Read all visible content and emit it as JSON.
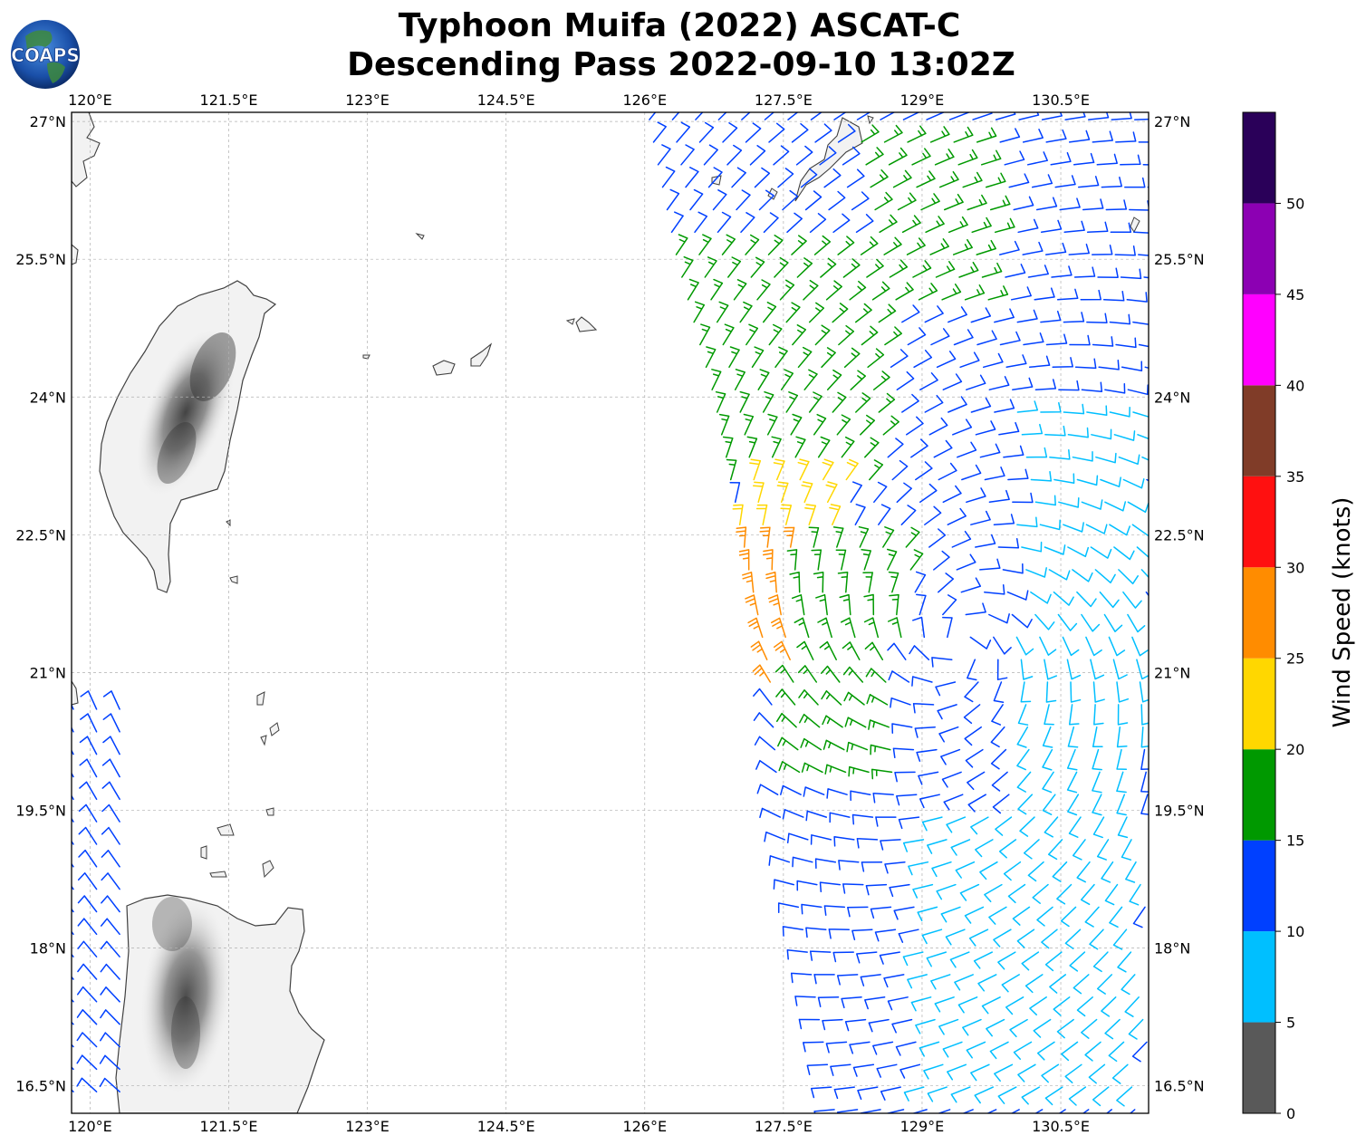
{
  "header": {
    "title_line1": "Typhoon Muifa (2022) ASCAT-C",
    "title_line2": "Descending Pass 2022-09-10 13:02Z",
    "logo_text": "COAPS"
  },
  "map": {
    "lon_range": [
      119.8,
      131.45
    ],
    "lat_range": [
      16.2,
      27.1
    ],
    "lon_ticks": [
      {
        "value": 120.0,
        "label": "120°E"
      },
      {
        "value": 121.5,
        "label": "121.5°E"
      },
      {
        "value": 123.0,
        "label": "123°E"
      },
      {
        "value": 124.5,
        "label": "124.5°E"
      },
      {
        "value": 126.0,
        "label": "126°E"
      },
      {
        "value": 127.5,
        "label": "127.5°E"
      },
      {
        "value": 129.0,
        "label": "129°E"
      },
      {
        "value": 130.5,
        "label": "130.5°E"
      }
    ],
    "lat_ticks": [
      {
        "value": 27.0,
        "label": "27°N"
      },
      {
        "value": 25.5,
        "label": "25.5°N"
      },
      {
        "value": 24.0,
        "label": "24°N"
      },
      {
        "value": 22.5,
        "label": "22.5°N"
      },
      {
        "value": 21.0,
        "label": "21°N"
      },
      {
        "value": 19.5,
        "label": "19.5°N"
      },
      {
        "value": 18.0,
        "label": "18°N"
      },
      {
        "value": 16.5,
        "label": "16.5°N"
      }
    ],
    "grid": true,
    "land_fill": "#f2f2f2",
    "coast_color": "#404040",
    "storm_center": [
      129.4,
      21.3
    ],
    "swaths": [
      {
        "name": "main",
        "west_edge": [
          [
            126.0,
            27.0
          ],
          [
            126.3,
            25.5
          ],
          [
            126.7,
            24.0
          ],
          [
            127.0,
            22.5
          ],
          [
            127.3,
            21.0
          ],
          [
            127.4,
            19.5
          ],
          [
            127.7,
            18.0
          ],
          [
            128.0,
            16.3
          ]
        ],
        "east_lon": 131.45
      },
      {
        "name": "west",
        "west_lon": 119.8,
        "east_lon": 120.4,
        "lat_range": [
          16.2,
          20.6
        ]
      }
    ]
  },
  "colorbar": {
    "label": "Wind Speed (knots)",
    "min": 0,
    "max": 55,
    "bins": [
      {
        "from": 0,
        "to": 5,
        "color": "#595959"
      },
      {
        "from": 5,
        "to": 10,
        "color": "#00bfff"
      },
      {
        "from": 10,
        "to": 15,
        "color": "#0040ff"
      },
      {
        "from": 15,
        "to": 20,
        "color": "#009900"
      },
      {
        "from": 20,
        "to": 25,
        "color": "#ffd700"
      },
      {
        "from": 25,
        "to": 30,
        "color": "#ff8c00"
      },
      {
        "from": 30,
        "to": 35,
        "color": "#ff1010"
      },
      {
        "from": 35,
        "to": 40,
        "color": "#803c28"
      },
      {
        "from": 40,
        "to": 45,
        "color": "#ff00ff"
      },
      {
        "from": 45,
        "to": 50,
        "color": "#8c00b3"
      },
      {
        "from": 50,
        "to": 55,
        "color": "#2a0059"
      }
    ],
    "ticks": [
      "0",
      "5",
      "10",
      "15",
      "20",
      "25",
      "30",
      "35",
      "40",
      "45",
      "50"
    ]
  },
  "chart_data": {
    "type": "scatter",
    "title": "Typhoon Muifa (2022) ASCAT-C Descending Pass 2022-09-10 13:02Z",
    "xlabel": "",
    "ylabel": "",
    "colorbar_label": "Wind Speed (knots)",
    "xlim": [
      119.8,
      131.45
    ],
    "ylim": [
      16.2,
      27.1
    ],
    "regions": [
      {
        "lon": [
          128.6,
          131.4
        ],
        "lat": [
          24.0,
          27.0
        ],
        "speed_kt": 12
      },
      {
        "lon": [
          128.3,
          129.8
        ],
        "lat": [
          25.0,
          27.0
        ],
        "speed_kt": 16
      },
      {
        "lon": [
          126.3,
          128.6
        ],
        "lat": [
          23.0,
          25.6
        ],
        "speed_kt": 17
      },
      {
        "lon": [
          127.0,
          128.2
        ],
        "lat": [
          21.3,
          23.2
        ],
        "speed_kt": 22
      },
      {
        "lon": [
          127.0,
          127.6
        ],
        "lat": [
          20.7,
          22.6
        ],
        "speed_kt": 27
      },
      {
        "lon": [
          127.6,
          129.0
        ],
        "lat": [
          19.7,
          22.4
        ],
        "speed_kt": 17
      },
      {
        "lon": [
          128.8,
          130.2
        ],
        "lat": [
          19.8,
          22.0
        ],
        "speed_kt": 12
      },
      {
        "lon": [
          130.0,
          131.4
        ],
        "lat": [
          19.0,
          24.0
        ],
        "speed_kt": 8
      },
      {
        "lon": [
          127.7,
          129.2
        ],
        "lat": [
          16.3,
          19.7
        ],
        "speed_kt": 12
      },
      {
        "lon": [
          129.0,
          131.4
        ],
        "lat": [
          16.3,
          19.6
        ],
        "speed_kt": 8
      },
      {
        "lon": [
          119.8,
          120.4
        ],
        "lat": [
          16.2,
          20.6
        ],
        "speed_kt": 10
      }
    ]
  }
}
